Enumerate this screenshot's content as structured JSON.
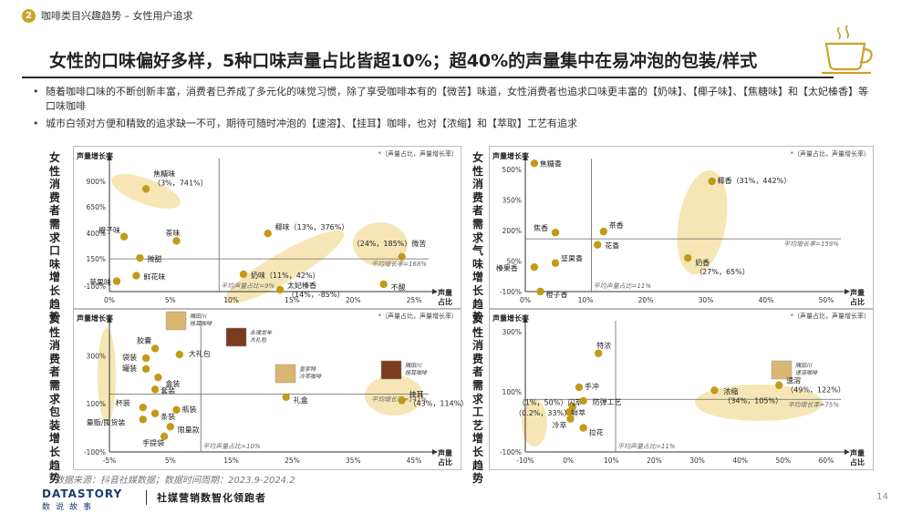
{
  "header": {
    "section_number": "2",
    "section_title": "咖啡类目兴趣趋势 – 女性用户追求"
  },
  "title": "女性的口味偏好多样，5种口味声量占比皆超10%；超40%的声量集中在易冲泡的包装/样式",
  "bullets": [
    "随着咖啡口味的不断创新丰富，消费者已养成了多元化的味觉习惯，除了享受咖啡本有的【微苦】味道，女性消费者也追求口味更丰富的【奶味】、【椰子味】、【焦糖味】和【太妃榛香】等口味咖啡",
    "城市白领对方便和精致的追求缺一不可，期待可随时冲泡的【速溶】、【挂耳】咖啡，也对【浓缩】和【萃取】工艺有追求"
  ],
  "side_labels": {
    "taste": "女性消费者需求口味增长趋势",
    "aroma": "女性消费者需求气味增长趋势",
    "pack": "女性消费者需求包装增长趋势",
    "craft": "女性消费者需求工艺增长趋势"
  },
  "colors": {
    "accent": "#c9a227",
    "highlight": "#f2dc96",
    "dot": "#c29a1a"
  },
  "chart_data": [
    {
      "id": "taste",
      "type": "scatter",
      "ylabel": "声量增长率",
      "xlabel": "声量\n占比",
      "note": "*（声量占比，声量增长率）",
      "x_ticks": [
        "0%",
        "5%",
        "10%",
        "15%",
        "20%",
        "25%"
      ],
      "y_ticks": [
        "900%",
        "650%",
        "400%",
        "150%",
        "-100%"
      ],
      "xlim": [
        0,
        25
      ],
      "ylim": [
        -100,
        900
      ],
      "y_ticks_numeric": [
        900,
        650,
        400,
        150,
        -100
      ],
      "y_scale": "categorical-ticks",
      "avg_x": 9,
      "avg_y": 168,
      "avg_x_label": "平均声量占比=9%",
      "avg_y_label": "平均增长率=168%",
      "points": [
        {
          "label": "焦糖味\n（3%，741%）",
          "x": 3,
          "y": 741
        },
        {
          "label": "茶味",
          "x": 5.5,
          "y": 315
        },
        {
          "label": "橙子味",
          "x": 1.2,
          "y": 350
        },
        {
          "label": "微甜",
          "x": 2.5,
          "y": 175
        },
        {
          "label": "苹果味",
          "x": 0.6,
          "y": -15
        },
        {
          "label": "鲜花味",
          "x": 2.2,
          "y": 30
        },
        {
          "label": "椰味（13%，376%）",
          "x": 13,
          "y": 376
        },
        {
          "label": "奶味（11%，42%）",
          "x": 11,
          "y": 42
        },
        {
          "label": "太妃榛香\n（14%，-85%）",
          "x": 14,
          "y": -85
        },
        {
          "label": "（24%，185%）微苦",
          "x": 24,
          "y": 185
        },
        {
          "label": "不酸",
          "x": 22.5,
          "y": -40
        }
      ]
    },
    {
      "id": "aroma",
      "type": "scatter",
      "ylabel": "声量增长率",
      "xlabel": "声量\n占比",
      "note": "*（声量占比，声量增长率）",
      "x_ticks": [
        "0%",
        "10%",
        "20%",
        "30%",
        "40%",
        "50%"
      ],
      "y_ticks": [
        "500%",
        "350%",
        "200%",
        "50%",
        "-100%"
      ],
      "xlim": [
        0,
        50
      ],
      "ylim": [
        -100,
        500
      ],
      "avg_x": 11,
      "avg_y": 159,
      "avg_x_label": "平均声量占比=11%",
      "avg_y_label": "平均增长率=159%",
      "points": [
        {
          "label": "焦糖香",
          "x": 1.5,
          "y": 530
        },
        {
          "label": "焦香",
          "x": 5,
          "y": 190
        },
        {
          "label": "茶香",
          "x": 13,
          "y": 195
        },
        {
          "label": "花香",
          "x": 12,
          "y": 130
        },
        {
          "label": "榛果香",
          "x": 1.5,
          "y": 20
        },
        {
          "label": "坚果香",
          "x": 5,
          "y": 40
        },
        {
          "label": "橙子香",
          "x": 2.5,
          "y": -100
        },
        {
          "label": "椰香（31%，442%）",
          "x": 31,
          "y": 442
        },
        {
          "label": "奶香\n（27%，65%）",
          "x": 27,
          "y": 65
        }
      ]
    },
    {
      "id": "pack",
      "type": "scatter",
      "ylabel": "声量增长率",
      "xlabel": "声量\n占比",
      "note": "*（声量占比，声量增长率）",
      "x_ticks": [
        "-5%",
        "5%",
        "15%",
        "25%",
        "35%",
        "45%"
      ],
      "y_ticks": [
        "300%",
        "100%",
        "-100%"
      ],
      "xlim": [
        -5,
        45
      ],
      "ylim": [
        -100,
        400
      ],
      "avg_x": 10,
      "avg_y": 141,
      "avg_x_label": "平均声量占比=10%",
      "avg_y_label": "平均增长率=141%",
      "product_labels": [
        "隅田川\n挂耳咖啡",
        "永璞龙年\n大礼包",
        "皇家特\n冷萃咖啡",
        "隅田川\n挂耳咖啡"
      ],
      "points": [
        {
          "label": "胶囊",
          "x": 2.5,
          "y": 330
        },
        {
          "label": "大礼包",
          "x": 6.5,
          "y": 305
        },
        {
          "label": "袋装",
          "x": 1,
          "y": 290
        },
        {
          "label": "罐装",
          "x": 1,
          "y": 245
        },
        {
          "label": "盒装",
          "x": 3,
          "y": 210
        },
        {
          "label": "套装",
          "x": 2.5,
          "y": 160
        },
        {
          "label": "礼盒",
          "x": 24,
          "y": 128
        },
        {
          "label": "挂耳\n（43%，114%）",
          "x": 43,
          "y": 114
        },
        {
          "label": "杯装",
          "x": 0.5,
          "y": 85
        },
        {
          "label": "条装",
          "x": 2.5,
          "y": 60
        },
        {
          "label": "瓶装",
          "x": 6,
          "y": 75
        },
        {
          "label": "量贩/囤货装",
          "x": 0.5,
          "y": 35
        },
        {
          "label": "限量款",
          "x": 5,
          "y": 5
        },
        {
          "label": "手提袋",
          "x": 4,
          "y": -35
        }
      ]
    },
    {
      "id": "craft",
      "type": "scatter",
      "ylabel": "声量增长率",
      "xlabel": "声量\n占比",
      "note": "*（声量占比，声量增长率）",
      "x_ticks": [
        "-10%",
        "0%",
        "10%",
        "20%",
        "30%",
        "40%",
        "50%",
        "60%"
      ],
      "y_ticks": [
        "300%",
        "100%",
        "-100%"
      ],
      "xlim": [
        -10,
        60
      ],
      "ylim": [
        -100,
        300
      ],
      "avg_x": 11,
      "avg_y": 75,
      "avg_x_label": "平均声量占比=11%",
      "avg_y_label": "平均增长率=75%",
      "product_labels": [
        "隅田川\n速溶咖啡"
      ],
      "points": [
        {
          "label": "特浓",
          "x": 7,
          "y": 228
        },
        {
          "label": "手冲",
          "x": 2.5,
          "y": 115
        },
        {
          "label": "（1%，50%）闪萃",
          "x": 1,
          "y": 50
        },
        {
          "label": "（0.2%，33%）鲜萃",
          "x": 0.2,
          "y": 33
        },
        {
          "label": "防弹工艺",
          "x": 3.5,
          "y": 70
        },
        {
          "label": "冷萃",
          "x": 0.5,
          "y": 10
        },
        {
          "label": "拉花",
          "x": 3.5,
          "y": -20
        },
        {
          "label": "浓缩\n（34%，105%）",
          "x": 34,
          "y": 105
        },
        {
          "label": "速溶\n（49%，122%）",
          "x": 49,
          "y": 122
        }
      ]
    }
  ],
  "footer": {
    "source": "数据来源：抖音社媒数据；数据时间周期：2023.9-2024.2",
    "logo_main": "DATASTORY",
    "logo_sub": "数说故事",
    "slogan": "社媒营销数智化领跑者",
    "page": "14"
  }
}
